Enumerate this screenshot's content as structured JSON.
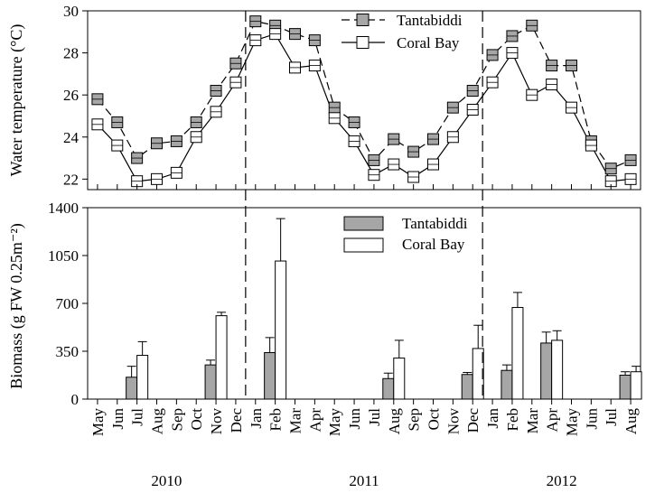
{
  "months": [
    "May",
    "Jun",
    "Jul",
    "Aug",
    "Sep",
    "Oct",
    "Nov",
    "Dec",
    "Jan",
    "Feb",
    "Mar",
    "Apr",
    "May",
    "Jun",
    "Jul",
    "Aug",
    "Sep",
    "Oct",
    "Nov",
    "Dec",
    "Jan",
    "Feb",
    "Mar",
    "Apr",
    "May",
    "Jun",
    "Jul",
    "Aug"
  ],
  "years": [
    {
      "label": "2010",
      "start": 0,
      "end": 7
    },
    {
      "label": "2011",
      "start": 8,
      "end": 19
    },
    {
      "label": "2012",
      "start": 20,
      "end": 27
    }
  ],
  "year_dividers_after": [
    7.5,
    19.5
  ],
  "colors": {
    "tantabiddi": "#a6a6a6",
    "coral_bay": "#ffffff",
    "stroke": "#000000"
  },
  "chart_data": [
    {
      "type": "line",
      "title": "",
      "xlabel": "",
      "ylabel": "Water temperature (°C)",
      "ylim": [
        21.5,
        30
      ],
      "yticks": [
        22,
        24,
        26,
        28,
        30
      ],
      "legend_position": "top-right",
      "series": [
        {
          "name": "Tantabiddi",
          "values": [
            25.8,
            24.7,
            23.0,
            23.7,
            23.8,
            24.7,
            26.2,
            27.5,
            29.5,
            29.3,
            28.9,
            28.6,
            25.4,
            24.7,
            22.9,
            23.9,
            23.3,
            23.9,
            25.4,
            26.2,
            27.9,
            28.8,
            29.3,
            27.4,
            27.4,
            23.8,
            22.5,
            22.9
          ]
        },
        {
          "name": "Coral Bay",
          "values": [
            24.6,
            23.6,
            21.9,
            22.0,
            22.3,
            24.0,
            25.2,
            26.6,
            28.6,
            28.9,
            27.3,
            27.4,
            24.9,
            23.8,
            22.2,
            22.7,
            22.1,
            22.7,
            24.0,
            25.3,
            26.6,
            28.0,
            26.0,
            26.5,
            25.4,
            23.6,
            21.9,
            22.0
          ]
        }
      ]
    },
    {
      "type": "bar",
      "title": "",
      "xlabel": "",
      "ylabel": "Biomass (g FW 0.25m⁻²)",
      "ylim": [
        0,
        1400
      ],
      "yticks": [
        0,
        350,
        700,
        1050,
        1400
      ],
      "legend_position": "top-center",
      "series": [
        {
          "name": "Tantabiddi",
          "points": [
            {
              "index": 2,
              "value": 160,
              "error": 80
            },
            {
              "index": 6,
              "value": 250,
              "error": 35
            },
            {
              "index": 9,
              "value": 340,
              "error": 110
            },
            {
              "index": 15,
              "value": 150,
              "error": 40
            },
            {
              "index": 19,
              "value": 180,
              "error": 15
            },
            {
              "index": 21,
              "value": 210,
              "error": 40
            },
            {
              "index": 23,
              "value": 410,
              "error": 80
            },
            {
              "index": 27,
              "value": 175,
              "error": 25
            }
          ]
        },
        {
          "name": "Coral Bay",
          "points": [
            {
              "index": 2,
              "value": 320,
              "error": 100
            },
            {
              "index": 6,
              "value": 610,
              "error": 25
            },
            {
              "index": 9,
              "value": 1010,
              "error": 310
            },
            {
              "index": 15,
              "value": 300,
              "error": 130
            },
            {
              "index": 19,
              "value": 370,
              "error": 170
            },
            {
              "index": 21,
              "value": 670,
              "error": 110
            },
            {
              "index": 23,
              "value": 430,
              "error": 70
            },
            {
              "index": 27,
              "value": 200,
              "error": 40
            }
          ]
        }
      ]
    }
  ]
}
